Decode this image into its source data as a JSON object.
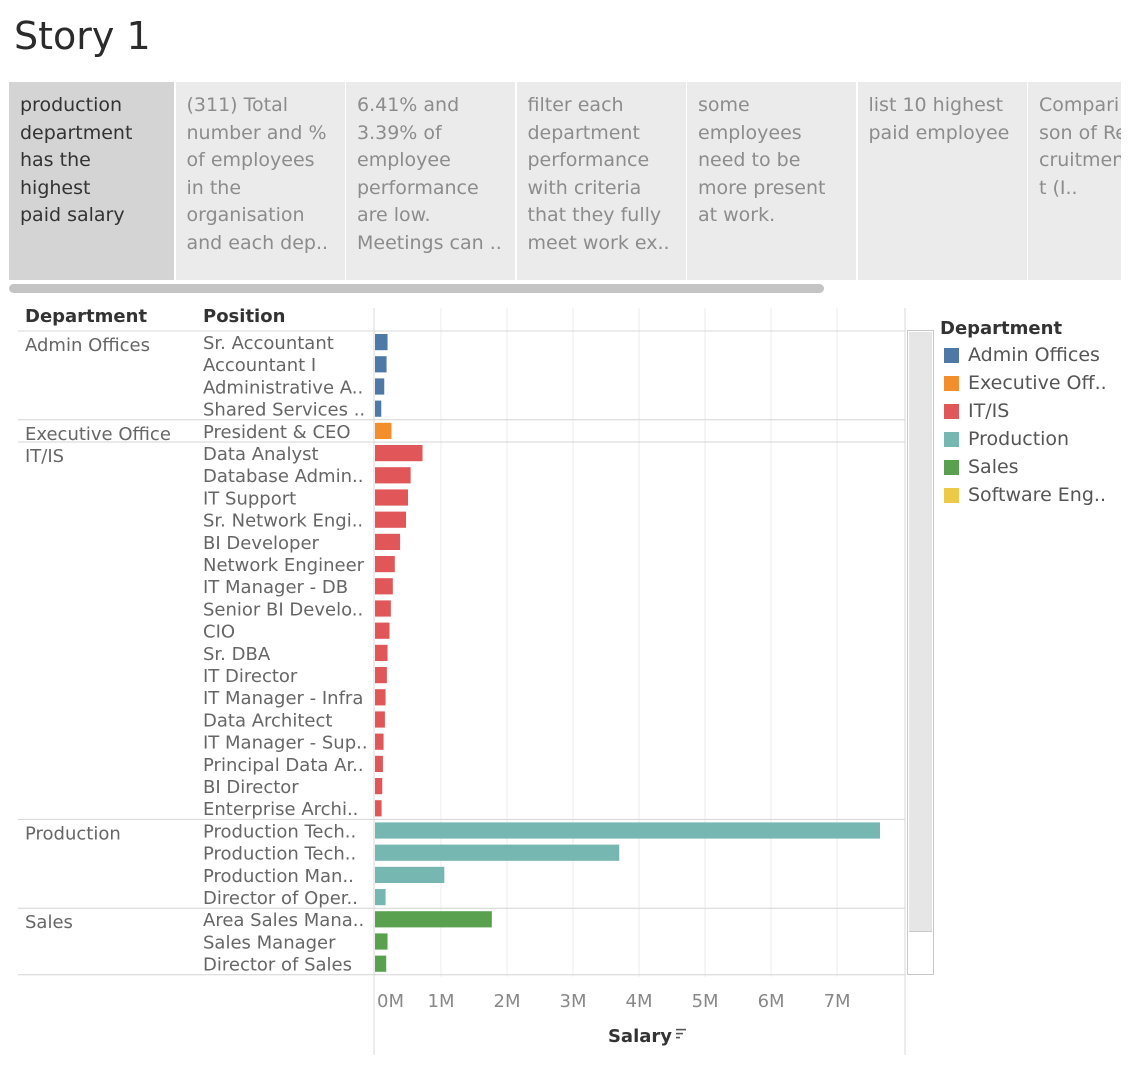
{
  "story": {
    "title": "Story 1"
  },
  "story_points": [
    {
      "text": "production\ndepartment\nhas the highest\npaid salary",
      "active": true
    },
    {
      "text": "(311) Total\nnumber and %\nof employees\nin the\norganisation\nand each dep..",
      "active": false
    },
    {
      "text": "6.41% and\n3.39% of\nemployee\nperformance\nare low.\nMeetings can ..",
      "active": false
    },
    {
      "text": "filter each\ndepartment\nperformance\nwith criteria\nthat they fully\nmeet work ex..",
      "active": false
    },
    {
      "text": "some\nemployees\nneed to be\nmore present\nat work.",
      "active": false
    },
    {
      "text": "list 10 highest\npaid employee",
      "active": false
    },
    {
      "text": "Compari\nson of Re\ncruitmen\nt (I..",
      "active": false
    }
  ],
  "headers": {
    "department": "Department",
    "position": "Position"
  },
  "legend": {
    "title": "Department",
    "items": [
      {
        "label": "Admin Offices",
        "color": "#4e79a7"
      },
      {
        "label": "Executive Off..",
        "color": "#f28e2b"
      },
      {
        "label": "IT/IS",
        "color": "#e15759"
      },
      {
        "label": "Production",
        "color": "#76b7b2"
      },
      {
        "label": "Sales",
        "color": "#59a14f"
      },
      {
        "label": "Software Eng..",
        "color": "#edc948"
      }
    ]
  },
  "chart_data": {
    "type": "bar",
    "orientation": "horizontal",
    "xlabel": "Salary",
    "xlim": [
      0,
      8000000
    ],
    "x_ticks": [
      0,
      1000000,
      2000000,
      3000000,
      4000000,
      5000000,
      6000000,
      7000000
    ],
    "x_tick_labels": [
      "0M",
      "1M",
      "2M",
      "3M",
      "4M",
      "5M",
      "6M",
      "7M"
    ],
    "grid": true,
    "groups": [
      {
        "department": "Admin Offices",
        "color": "#4e79a7",
        "rows": [
          {
            "position": "Sr. Accountant",
            "value": 190000
          },
          {
            "position": "Accountant I",
            "value": 175000
          },
          {
            "position": "Administrative A..",
            "value": 140000
          },
          {
            "position": "Shared Services ..",
            "value": 95000
          }
        ]
      },
      {
        "department": "Executive Office",
        "color": "#f28e2b",
        "rows": [
          {
            "position": "President & CEO",
            "value": 250000
          }
        ]
      },
      {
        "department": "IT/IS",
        "color": "#e15759",
        "rows": [
          {
            "position": "Data Analyst",
            "value": 720000
          },
          {
            "position": "Database Admin..",
            "value": 540000
          },
          {
            "position": "IT Support",
            "value": 500000
          },
          {
            "position": "Sr. Network Engi..",
            "value": 470000
          },
          {
            "position": "BI Developer",
            "value": 380000
          },
          {
            "position": "Network Engineer",
            "value": 300000
          },
          {
            "position": "IT Manager - DB",
            "value": 270000
          },
          {
            "position": "Senior BI Develo..",
            "value": 240000
          },
          {
            "position": "CIO",
            "value": 220000
          },
          {
            "position": "Sr. DBA",
            "value": 190000
          },
          {
            "position": "IT Director",
            "value": 180000
          },
          {
            "position": "IT Manager - Infra",
            "value": 160000
          },
          {
            "position": "Data Architect",
            "value": 150000
          },
          {
            "position": "IT Manager - Sup..",
            "value": 130000
          },
          {
            "position": "Principal Data Ar..",
            "value": 120000
          },
          {
            "position": "BI Director",
            "value": 110000
          },
          {
            "position": "Enterprise Archi..",
            "value": 100000
          }
        ]
      },
      {
        "department": "Production",
        "color": "#76b7b2",
        "rows": [
          {
            "position": "Production Tech..",
            "value": 7650000
          },
          {
            "position": "Production Tech..",
            "value": 3700000
          },
          {
            "position": "Production Man..",
            "value": 1050000
          },
          {
            "position": "Director of Oper..",
            "value": 160000
          }
        ]
      },
      {
        "department": "Sales",
        "color": "#59a14f",
        "rows": [
          {
            "position": "Area Sales Mana..",
            "value": 1770000
          },
          {
            "position": "Sales Manager",
            "value": 190000
          },
          {
            "position": "Director of Sales",
            "value": 170000
          }
        ]
      }
    ]
  }
}
